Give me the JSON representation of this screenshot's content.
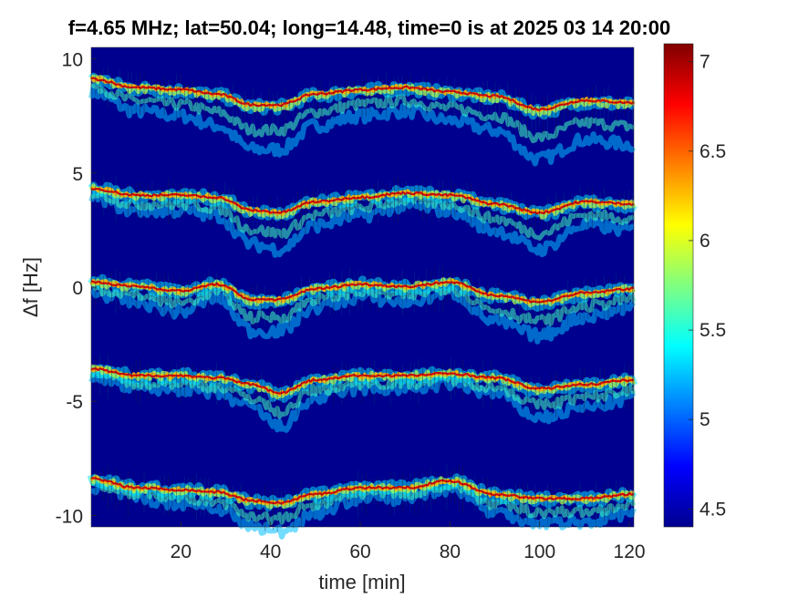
{
  "chart_data": {
    "type": "heatmap",
    "title": "f=4.65 MHz;  lat=50.04; long=14.48, time=0 is at 2025 03 14 20:00",
    "xlabel": "time [min]",
    "ylabel": "Δf [Hz]",
    "xlim": [
      0,
      121
    ],
    "ylim": [
      -10.5,
      10.5
    ],
    "x_ticks": [
      20,
      40,
      60,
      80,
      100,
      120
    ],
    "y_ticks": [
      10,
      5,
      0,
      -5,
      -10
    ],
    "colorbar": {
      "range": [
        4.4,
        7.1
      ],
      "ticks": [
        7,
        6.5,
        6,
        5.5,
        5,
        4.5
      ],
      "colormap": "jet"
    },
    "grid": false,
    "series": [
      {
        "offset_hz": 9,
        "time_min": [
          0,
          10,
          20,
          28,
          36,
          42,
          50,
          60,
          70,
          80,
          90,
          100,
          110,
          121
        ],
        "center_hz": [
          9.1,
          8.7,
          8.6,
          8.4,
          7.9,
          7.9,
          8.4,
          8.6,
          8.7,
          8.5,
          8.3,
          7.7,
          8.1,
          8.0
        ]
      },
      {
        "offset_hz": 4,
        "time_min": [
          0,
          10,
          20,
          28,
          36,
          42,
          50,
          60,
          70,
          80,
          90,
          100,
          110,
          121
        ],
        "center_hz": [
          4.3,
          4.0,
          4.0,
          3.9,
          3.3,
          3.2,
          3.7,
          3.9,
          4.1,
          4.0,
          3.6,
          3.2,
          3.7,
          3.6
        ]
      },
      {
        "offset_hz": 0,
        "time_min": [
          0,
          10,
          20,
          28,
          36,
          42,
          50,
          60,
          70,
          80,
          90,
          100,
          110,
          121
        ],
        "center_hz": [
          0.2,
          0.0,
          -0.2,
          0.1,
          -0.6,
          -0.6,
          -0.1,
          0.1,
          0.0,
          0.2,
          -0.4,
          -0.7,
          -0.3,
          -0.1
        ]
      },
      {
        "offset_hz": -4,
        "time_min": [
          0,
          10,
          20,
          28,
          36,
          42,
          50,
          60,
          70,
          80,
          90,
          100,
          110,
          121
        ],
        "center_hz": [
          -3.6,
          -3.9,
          -3.9,
          -4.0,
          -4.3,
          -4.7,
          -4.1,
          -3.9,
          -3.9,
          -3.8,
          -4.0,
          -4.5,
          -4.3,
          -4.1
        ]
      },
      {
        "offset_hz": -9,
        "time_min": [
          0,
          10,
          20,
          28,
          36,
          42,
          50,
          60,
          70,
          80,
          90,
          100,
          110,
          121
        ],
        "center_hz": [
          -8.4,
          -8.8,
          -8.9,
          -9.0,
          -9.4,
          -9.5,
          -9.1,
          -8.8,
          -8.8,
          -8.5,
          -9.1,
          -9.3,
          -9.3,
          -9.1
        ]
      }
    ]
  }
}
